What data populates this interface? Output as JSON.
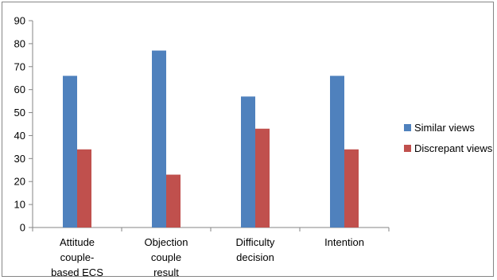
{
  "chart_data": {
    "type": "bar",
    "categories": [
      "Attitude couple-based ECS",
      "Objection couple result",
      "Difficulty decision",
      "Intention"
    ],
    "category_label_lines": [
      [
        "Attitude",
        "couple-",
        "based ECS"
      ],
      [
        "Objection",
        "couple",
        "result"
      ],
      [
        "Difficulty",
        "decision"
      ],
      [
        "Intention"
      ]
    ],
    "series": [
      {
        "name": "Similar views",
        "color": "#4F81BD",
        "values": [
          66,
          77,
          57,
          66
        ]
      },
      {
        "name": "Discrepant views",
        "color": "#C0504D",
        "values": [
          34,
          23,
          43,
          34
        ]
      }
    ],
    "ylim": [
      0,
      90
    ],
    "yticks": [
      "0",
      "10",
      "20",
      "30",
      "40",
      "50",
      "60",
      "70",
      "80",
      "90"
    ],
    "title": "",
    "xlabel": "",
    "ylabel": "",
    "legend_position": "right",
    "grid": false
  }
}
